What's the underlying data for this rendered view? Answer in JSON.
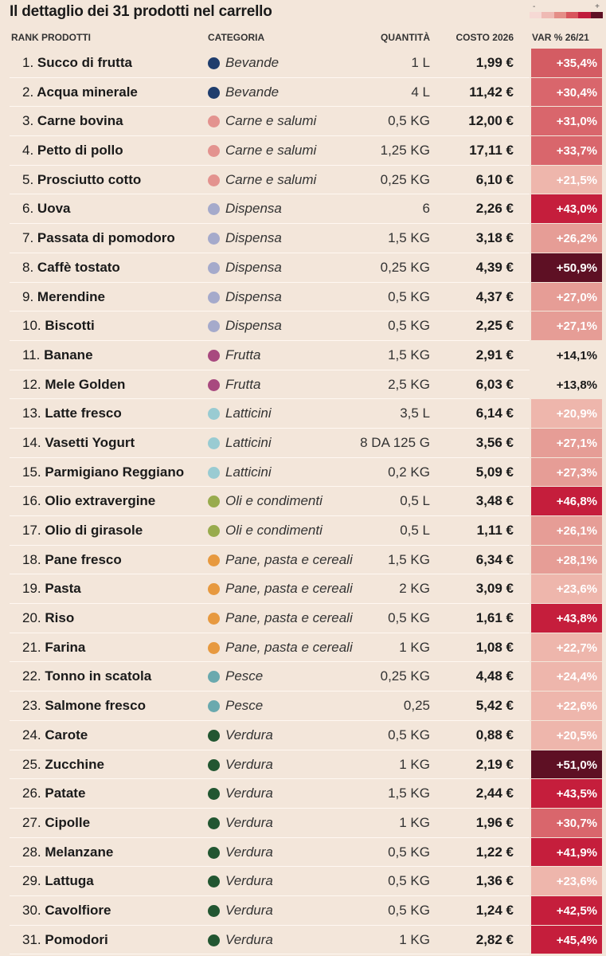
{
  "title": "Il dettaglio dei 31 prodotti nel carrello",
  "legend": {
    "min_label": "-",
    "max_label": "+",
    "colors": [
      "#f6d9d4",
      "#efbab4",
      "#e48e87",
      "#d8555c",
      "#c01c3c",
      "#5e1024"
    ]
  },
  "headers": {
    "rank": "RANK PRODOTTI",
    "category": "CATEGORIA",
    "quantity": "QUANTITÀ",
    "cost": "COSTO 2026",
    "var": "VAR % 26/21"
  },
  "category_colors": {
    "Bevande": "#1f3d6d",
    "Carne e salumi": "#e3938f",
    "Dispensa": "#a5aacb",
    "Frutta": "#a8497f",
    "Latticini": "#99cbd2",
    "Oli e condimenti": "#98ab4d",
    "Pane, pasta e cereali": "#e7993f",
    "Pesce": "#6aa9ae",
    "Verdura": "#225631"
  },
  "products": [
    {
      "rank": "1.",
      "name": "Succo di frutta",
      "category": "Bevande",
      "quantity": "1 L",
      "cost": "1,99 €",
      "var": "+35,4%",
      "var_value": 35.4
    },
    {
      "rank": "2.",
      "name": "Acqua minerale",
      "category": "Bevande",
      "quantity": "4 L",
      "cost": "11,42 €",
      "var": "+30,4%",
      "var_value": 30.4
    },
    {
      "rank": "3.",
      "name": "Carne bovina",
      "category": "Carne e salumi",
      "quantity": "0,5 KG",
      "cost": "12,00 €",
      "var": "+31,0%",
      "var_value": 31.0
    },
    {
      "rank": "4.",
      "name": "Petto di pollo",
      "category": "Carne e salumi",
      "quantity": "1,25 KG",
      "cost": "17,11 €",
      "var": "+33,7%",
      "var_value": 33.7
    },
    {
      "rank": "5.",
      "name": "Prosciutto cotto",
      "category": "Carne e salumi",
      "quantity": "0,25 KG",
      "cost": "6,10 €",
      "var": "+21,5%",
      "var_value": 21.5
    },
    {
      "rank": "6.",
      "name": "Uova",
      "category": "Dispensa",
      "quantity": "6",
      "cost": "2,26 €",
      "var": "+43,0%",
      "var_value": 43.0
    },
    {
      "rank": "7.",
      "name": "Passata di pomodoro",
      "category": "Dispensa",
      "quantity": "1,5 KG",
      "cost": "3,18 €",
      "var": "+26,2%",
      "var_value": 26.2
    },
    {
      "rank": "8.",
      "name": "Caffè tostato",
      "category": "Dispensa",
      "quantity": "0,25 KG",
      "cost": "4,39 €",
      "var": "+50,9%",
      "var_value": 50.9
    },
    {
      "rank": "9.",
      "name": "Merendine",
      "category": "Dispensa",
      "quantity": "0,5 KG",
      "cost": "4,37 €",
      "var": "+27,0%",
      "var_value": 27.0
    },
    {
      "rank": "10.",
      "name": "Biscotti",
      "category": "Dispensa",
      "quantity": "0,5 KG",
      "cost": "2,25 €",
      "var": "+27,1%",
      "var_value": 27.1
    },
    {
      "rank": "11.",
      "name": "Banane",
      "category": "Frutta",
      "quantity": "1,5 KG",
      "cost": "2,91 €",
      "var": "+14,1%",
      "var_value": 14.1
    },
    {
      "rank": "12.",
      "name": "Mele Golden",
      "category": "Frutta",
      "quantity": "2,5 KG",
      "cost": "6,03 €",
      "var": "+13,8%",
      "var_value": 13.8
    },
    {
      "rank": "13.",
      "name": "Latte fresco",
      "category": "Latticini",
      "quantity": "3,5 L",
      "cost": "6,14 €",
      "var": "+20,9%",
      "var_value": 20.9
    },
    {
      "rank": "14.",
      "name": "Vasetti Yogurt",
      "category": "Latticini",
      "quantity": "8 DA 125 G",
      "cost": "3,56 €",
      "var": "+27,1%",
      "var_value": 27.1
    },
    {
      "rank": "15.",
      "name": "Parmigiano Reggiano",
      "category": "Latticini",
      "quantity": "0,2 KG",
      "cost": "5,09 €",
      "var": "+27,3%",
      "var_value": 27.3
    },
    {
      "rank": "16.",
      "name": "Olio extravergine",
      "category": "Oli e condimenti",
      "quantity": "0,5 L",
      "cost": "3,48 €",
      "var": "+46,8%",
      "var_value": 46.8
    },
    {
      "rank": "17.",
      "name": "Olio di girasole",
      "category": "Oli e condimenti",
      "quantity": "0,5 L",
      "cost": "1,11 €",
      "var": "+26,1%",
      "var_value": 26.1
    },
    {
      "rank": "18.",
      "name": "Pane fresco",
      "category": "Pane, pasta e cereali",
      "quantity": "1,5 KG",
      "cost": "6,34 €",
      "var": "+28,1%",
      "var_value": 28.1
    },
    {
      "rank": "19.",
      "name": "Pasta",
      "category": "Pane, pasta e cereali",
      "quantity": "2 KG",
      "cost": "3,09 €",
      "var": "+23,6%",
      "var_value": 23.6
    },
    {
      "rank": "20.",
      "name": "Riso",
      "category": "Pane, pasta e cereali",
      "quantity": "0,5 KG",
      "cost": "1,61 €",
      "var": "+43,8%",
      "var_value": 43.8
    },
    {
      "rank": "21.",
      "name": "Farina",
      "category": "Pane, pasta e cereali",
      "quantity": "1 KG",
      "cost": "1,08 €",
      "var": "+22,7%",
      "var_value": 22.7
    },
    {
      "rank": "22.",
      "name": "Tonno in scatola",
      "category": "Pesce",
      "quantity": "0,25 KG",
      "cost": "4,48 €",
      "var": "+24,4%",
      "var_value": 24.4
    },
    {
      "rank": "23.",
      "name": "Salmone fresco",
      "category": "Pesce",
      "quantity": "0,25",
      "cost": "5,42 €",
      "var": "+22,6%",
      "var_value": 22.6
    },
    {
      "rank": "24.",
      "name": "Carote",
      "category": "Verdura",
      "quantity": "0,5 KG",
      "cost": "0,88 €",
      "var": "+20,5%",
      "var_value": 20.5
    },
    {
      "rank": "25.",
      "name": "Zucchine",
      "category": "Verdura",
      "quantity": "1 KG",
      "cost": "2,19 €",
      "var": "+51,0%",
      "var_value": 51.0
    },
    {
      "rank": "26.",
      "name": "Patate",
      "category": "Verdura",
      "quantity": "1,5 KG",
      "cost": "2,44 €",
      "var": "+43,5%",
      "var_value": 43.5
    },
    {
      "rank": "27.",
      "name": "Cipolle",
      "category": "Verdura",
      "quantity": "1 KG",
      "cost": "1,96 €",
      "var": "+30,7%",
      "var_value": 30.7
    },
    {
      "rank": "28.",
      "name": "Melanzane",
      "category": "Verdura",
      "quantity": "0,5 KG",
      "cost": "1,22 €",
      "var": "+41,9%",
      "var_value": 41.9
    },
    {
      "rank": "29.",
      "name": "Lattuga",
      "category": "Verdura",
      "quantity": "0,5 KG",
      "cost": "1,36 €",
      "var": "+23,6%",
      "var_value": 23.6
    },
    {
      "rank": "30.",
      "name": "Cavolfiore",
      "category": "Verdura",
      "quantity": "0,5 KG",
      "cost": "1,24 €",
      "var": "+42,5%",
      "var_value": 42.5
    },
    {
      "rank": "31.",
      "name": "Pomodori",
      "category": "Verdura",
      "quantity": "1 KG",
      "cost": "2,82 €",
      "var": "+45,4%",
      "var_value": 45.4
    }
  ]
}
